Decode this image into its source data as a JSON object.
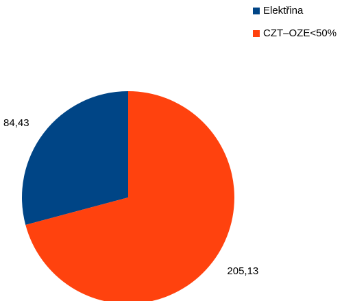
{
  "chart_data": {
    "type": "pie",
    "categories": [
      "Elektřina",
      "CZT–OZE<50%"
    ],
    "values": [
      84.43,
      205.13
    ],
    "value_labels": [
      "84,43",
      "205,13"
    ],
    "colors": [
      "#004586",
      "#ff420e"
    ],
    "start_angle_deg": 0,
    "direction": "counterclockwise",
    "legend_position": "top-right",
    "title": ""
  }
}
